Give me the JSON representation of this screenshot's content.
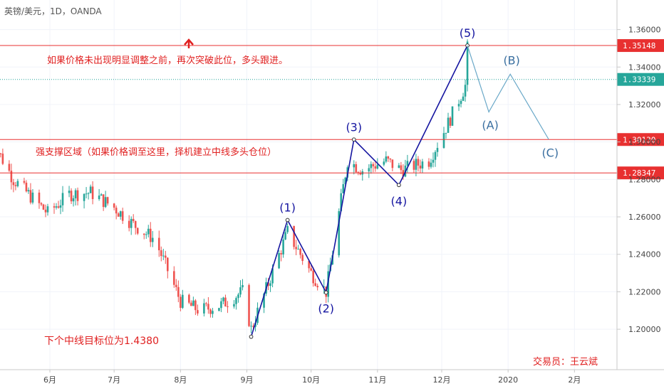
{
  "header": {
    "symbol": "英镑/美元，1D，OANDA"
  },
  "annotations": {
    "breakout": "如果价格未出现明显调整之前，再次突破此位，多头跟进。",
    "support": "强支撑区域（如果价格调至这里，择机建立中线多头仓位）",
    "target": "下个中线目标位为1.4380",
    "trader": "交易员：王云斌"
  },
  "colors": {
    "up": "#26a69a",
    "down": "#ef5350",
    "level": "#e83030",
    "wave": "#1515a0",
    "correction": "#6aa8c8",
    "price": "#26a69a"
  },
  "chart_data": {
    "type": "candlestick",
    "title": "英镑/美元，1D，OANDA",
    "ylim": [
      1.186,
      1.372
    ],
    "y_ticks": [
      "1.36000",
      "1.34000",
      "1.32000",
      "1.30000",
      "1.28000",
      "1.26000",
      "1.24000",
      "1.22000",
      "1.20000"
    ],
    "x_ticks": [
      "6月",
      "7月",
      "8月",
      "9月",
      "10月",
      "11月",
      "12月",
      "2020",
      "2月"
    ],
    "levels": [
      {
        "label": "1.35148",
        "value": 1.35148,
        "style": "solid"
      },
      {
        "label": "1.33339",
        "value": 1.33339,
        "style": "dotted-current"
      },
      {
        "label": "1.30130",
        "value": 1.3013,
        "style": "solid"
      },
      {
        "label": "1.28347",
        "value": 1.28347,
        "style": "solid"
      }
    ],
    "series_ohlc_anchors": [
      [
        "2019-05-03",
        1.305
      ],
      [
        "2019-05-15",
        1.28
      ],
      [
        "2019-05-31",
        1.262
      ],
      [
        "2019-06-10",
        1.272
      ],
      [
        "2019-06-20",
        1.273
      ],
      [
        "2019-07-01",
        1.265
      ],
      [
        "2019-07-10",
        1.256
      ],
      [
        "2019-07-20",
        1.248
      ],
      [
        "2019-08-01",
        1.215
      ],
      [
        "2019-08-10",
        1.21
      ],
      [
        "2019-08-20",
        1.213
      ],
      [
        "2019-08-30",
        1.22
      ],
      [
        "2019-09-03",
        1.2
      ],
      [
        "2019-09-20",
        1.252
      ],
      [
        "2019-10-01",
        1.23
      ],
      [
        "2019-10-08",
        1.22
      ],
      [
        "2019-10-18",
        1.29
      ],
      [
        "2019-10-25",
        1.285
      ],
      [
        "2019-11-05",
        1.29
      ],
      [
        "2019-11-12",
        1.285
      ],
      [
        "2019-11-25",
        1.29
      ],
      [
        "2019-12-04",
        1.31
      ],
      [
        "2019-12-12",
        1.33
      ],
      [
        "2019-12-13",
        1.35
      ]
    ],
    "elliott_impulse": [
      {
        "label": "",
        "date": "2019-09-03",
        "value": 1.196
      },
      {
        "label": "(1)",
        "date": "2019-09-20",
        "value": 1.2583
      },
      {
        "label": "(2)",
        "date": "2019-10-08",
        "value": 1.2196
      },
      {
        "label": "(3)",
        "date": "2019-10-21",
        "value": 1.3013
      },
      {
        "label": "(4)",
        "date": "2019-11-11",
        "value": 1.277
      },
      {
        "label": "(5)",
        "date": "2019-12-13",
        "value": 1.3515
      }
    ],
    "elliott_correction": [
      {
        "label": "(A)",
        "date": "2019-12-23",
        "value": 1.316
      },
      {
        "label": "(B)",
        "date": "2020-01-02",
        "value": 1.3362
      },
      {
        "label": "(C)",
        "date": "2020-01-20",
        "value": 1.3013
      }
    ]
  }
}
